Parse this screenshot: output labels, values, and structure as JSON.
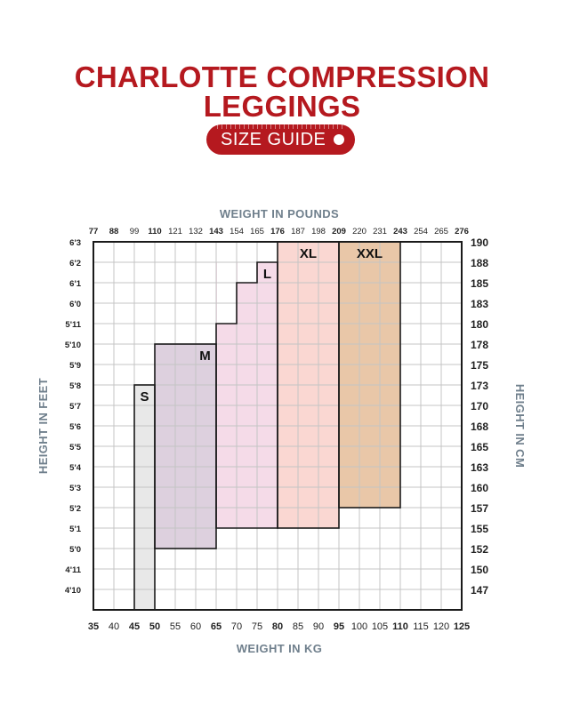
{
  "header": {
    "title_line1": "CHARLOTTE COMPRESSION",
    "title_line2": "LEGGINGS",
    "badge": "SIZE GUIDE"
  },
  "chart_data": {
    "type": "heatmap",
    "xlabel_top": "WEIGHT IN POUNDS",
    "xlabel_bottom": "WEIGHT IN KG",
    "ylabel_left": "HEIGHT IN FEET",
    "ylabel_right": "HEIGHT IN CM",
    "x_kg_range": [
      35,
      125
    ],
    "x_kg_ticks": [
      "35",
      "40",
      "45",
      "50",
      "55",
      "60",
      "65",
      "70",
      "75",
      "80",
      "85",
      "90",
      "95",
      "100",
      "105",
      "110",
      "115",
      "120",
      "125"
    ],
    "x_kg_bold": [
      "35",
      "45",
      "50",
      "65",
      "80",
      "95",
      "110",
      "125"
    ],
    "x_lb_ticks": [
      "77",
      "88",
      "99",
      "110",
      "121",
      "132",
      "143",
      "154",
      "165",
      "176",
      "187",
      "198",
      "209",
      "220",
      "231",
      "243",
      "254",
      "265",
      "276"
    ],
    "x_lb_bold": [
      "77",
      "88",
      "110",
      "143",
      "176",
      "209",
      "243",
      "276"
    ],
    "y_ft_ticks": [
      "6'3",
      "6'2",
      "6'1",
      "6'0",
      "5'11",
      "5'10",
      "5'9",
      "5'8",
      "5'7",
      "5'6",
      "5'5",
      "5'4",
      "5'3",
      "5'2",
      "5'1",
      "5'0",
      "4'11",
      "4'10"
    ],
    "y_cm_ticks": [
      "190",
      "188",
      "185",
      "183",
      "180",
      "178",
      "175",
      "173",
      "170",
      "168",
      "165",
      "163",
      "160",
      "157",
      "155",
      "152",
      "150",
      "147"
    ],
    "sizes": [
      {
        "label": "S",
        "color": "#e8e8e8",
        "kg_min": 45,
        "kg_max": 50,
        "height_ft": [
          "4'10",
          "5'8"
        ]
      },
      {
        "label": "M",
        "color": "#ddd0de",
        "kg_min": 50,
        "kg_max": 65,
        "height_ft": [
          "5'0",
          "5'10"
        ]
      },
      {
        "label": "L",
        "color": "#f5dbe8",
        "kg_min": 65,
        "kg_max": 80,
        "height_ft": [
          "5'1",
          "6'2"
        ]
      },
      {
        "label": "XL",
        "color": "#fad7d2",
        "kg_min": 80,
        "kg_max": 95,
        "height_ft": [
          "5'1",
          "6'3"
        ]
      },
      {
        "label": "XXL",
        "color": "#e9c7a8",
        "kg_min": 95,
        "kg_max": 110,
        "height_ft": [
          "5'2",
          "6'3"
        ]
      }
    ],
    "colors": {
      "accent": "#b5191f",
      "axis_label": "#6f7f8c",
      "grid": "#c4c4c4"
    }
  }
}
